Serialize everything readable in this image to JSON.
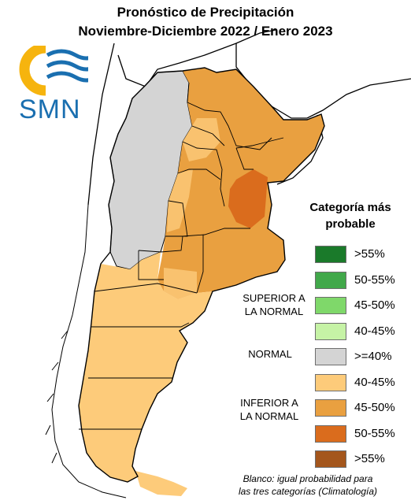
{
  "title": {
    "line1": "Pronóstico de Precipitación",
    "line2": "Noviembre-Diciembre 2022 / Enero 2023"
  },
  "logo": {
    "text": "SMN",
    "icon": "smn-sun-waves-icon"
  },
  "colors": {
    "gray": "#d4d4d4",
    "light_orange": "#fdcb7a",
    "orange": "#e9a040",
    "dark_orange": "#da6c1d",
    "brown": "#a4561c",
    "green_dark": "#1a7a2a",
    "green_mid": "#41a84a",
    "green_light": "#7fd86a",
    "green_pale": "#c6f3a6",
    "neighbor_land": "#ffffff"
  },
  "legend": {
    "title_line1": "Categoría más",
    "title_line2": "probable",
    "items": [
      {
        "label": ">55%",
        "color": "#1a7a2a"
      },
      {
        "label": "50-55%",
        "color": "#41a84a"
      },
      {
        "label": "45-50%",
        "color": "#7fd86a"
      },
      {
        "label": "40-45%",
        "color": "#c6f3a6"
      },
      {
        "label": ">=40%",
        "color": "#d4d4d4"
      },
      {
        "label": "40-45%",
        "color": "#fdcb7a"
      },
      {
        "label": "45-50%",
        "color": "#e9a040"
      },
      {
        "label": "50-55%",
        "color": "#da6c1d"
      },
      {
        "label": ">55%",
        "color": "#a4561c"
      }
    ],
    "categories": {
      "superior_line1": "SUPERIOR A",
      "superior_line2": "LA NORMAL",
      "normal": "NORMAL",
      "inferior_line1": "INFERIOR A",
      "inferior_line2": "LA NORMAL"
    }
  },
  "footnote": {
    "line1": "Blanco: igual probabilidad para",
    "line2": "las tres categorías (Climatología)"
  }
}
